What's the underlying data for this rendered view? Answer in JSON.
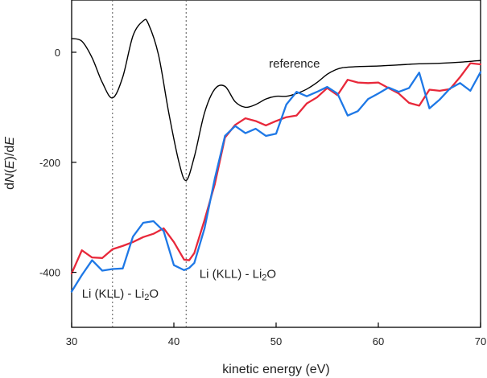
{
  "chart_data": {
    "type": "line",
    "title": "",
    "xlabel": "kinetic energy (eV)",
    "ylabel": "dN(E)/dE",
    "ylabel_parts": {
      "pre": "d",
      "n": "N",
      "paren_open": "(",
      "e1": "E",
      "paren_close": ")",
      "slash": "/d",
      "e2": "E"
    },
    "xlim": [
      30,
      70
    ],
    "ylim": [
      -500,
      95
    ],
    "xticks": [
      30,
      40,
      50,
      60,
      70
    ],
    "yticks": [
      0,
      -200,
      -400
    ],
    "grid": false,
    "legend": "none",
    "annotations": [
      {
        "name": "reference-label",
        "text": "reference",
        "x": 49.3,
        "y": -28
      },
      {
        "name": "li-kll-left-label",
        "prefix": "Li (KLL) - Li",
        "sub": "2",
        "suffix": "O",
        "x": 31.0,
        "y": -446
      },
      {
        "name": "li-kll-right-label",
        "prefix": "Li (KLL) - Li",
        "sub": "2",
        "suffix": "O",
        "x": 42.5,
        "y": -410
      }
    ],
    "vlines": [
      34,
      41.2
    ],
    "series": [
      {
        "key": "reference",
        "color": "#000000",
        "smooth": true,
        "points": [
          [
            30,
            25
          ],
          [
            31,
            20
          ],
          [
            32,
            -10
          ],
          [
            33,
            -55
          ],
          [
            34,
            -83
          ],
          [
            35,
            -45
          ],
          [
            36,
            30
          ],
          [
            37,
            57
          ],
          [
            37.5,
            52
          ],
          [
            38.5,
            -5
          ],
          [
            39.5,
            -110
          ],
          [
            40.5,
            -200
          ],
          [
            41.2,
            -233
          ],
          [
            42,
            -190
          ],
          [
            43,
            -110
          ],
          [
            44,
            -67
          ],
          [
            45,
            -62
          ],
          [
            46,
            -90
          ],
          [
            47,
            -100
          ],
          [
            48,
            -95
          ],
          [
            49,
            -85
          ],
          [
            50,
            -80
          ],
          [
            51,
            -80
          ],
          [
            52,
            -75
          ],
          [
            53,
            -67
          ],
          [
            54,
            -55
          ],
          [
            55,
            -40
          ],
          [
            55.8,
            -32
          ],
          [
            56.5,
            -28
          ],
          [
            58,
            -26
          ],
          [
            60,
            -25
          ],
          [
            62,
            -23
          ],
          [
            64,
            -21
          ],
          [
            66,
            -20
          ],
          [
            68,
            -18
          ],
          [
            70,
            -15
          ]
        ]
      },
      {
        "key": "red",
        "color": "#e8283a",
        "smooth": false,
        "points": [
          [
            30,
            -402
          ],
          [
            31,
            -360
          ],
          [
            32,
            -373
          ],
          [
            33,
            -374
          ],
          [
            34,
            -358
          ],
          [
            35,
            -352
          ],
          [
            36,
            -345
          ],
          [
            37,
            -336
          ],
          [
            38,
            -330
          ],
          [
            39,
            -320
          ],
          [
            40,
            -345
          ],
          [
            41,
            -377
          ],
          [
            41.5,
            -378
          ],
          [
            42,
            -365
          ],
          [
            43,
            -305
          ],
          [
            44,
            -240
          ],
          [
            45,
            -155
          ],
          [
            46,
            -132
          ],
          [
            47,
            -120
          ],
          [
            48,
            -125
          ],
          [
            49,
            -133
          ],
          [
            50,
            -125
          ],
          [
            51,
            -118
          ],
          [
            52,
            -115
          ],
          [
            53,
            -93
          ],
          [
            54,
            -82
          ],
          [
            55,
            -65
          ],
          [
            56,
            -78
          ],
          [
            57,
            -50
          ],
          [
            58,
            -55
          ],
          [
            59,
            -56
          ],
          [
            60,
            -55
          ],
          [
            61,
            -65
          ],
          [
            62,
            -75
          ],
          [
            63,
            -92
          ],
          [
            64,
            -97
          ],
          [
            65,
            -68
          ],
          [
            66,
            -70
          ],
          [
            67,
            -67
          ],
          [
            68,
            -45
          ],
          [
            69,
            -20
          ],
          [
            70,
            -22
          ]
        ]
      },
      {
        "key": "blue",
        "color": "#1e78e6",
        "smooth": false,
        "points": [
          [
            30,
            -435
          ],
          [
            31,
            -405
          ],
          [
            32,
            -378
          ],
          [
            33,
            -397
          ],
          [
            34,
            -394
          ],
          [
            35,
            -393
          ],
          [
            36,
            -335
          ],
          [
            37,
            -310
          ],
          [
            38,
            -307
          ],
          [
            39,
            -325
          ],
          [
            40,
            -387
          ],
          [
            41,
            -396
          ],
          [
            41.5,
            -392
          ],
          [
            42,
            -383
          ],
          [
            43,
            -320
          ],
          [
            44,
            -230
          ],
          [
            45,
            -152
          ],
          [
            46,
            -134
          ],
          [
            47,
            -147
          ],
          [
            48,
            -139
          ],
          [
            49,
            -152
          ],
          [
            50,
            -148
          ],
          [
            51,
            -95
          ],
          [
            52,
            -72
          ],
          [
            53,
            -80
          ],
          [
            54,
            -72
          ],
          [
            55,
            -63
          ],
          [
            56,
            -75
          ],
          [
            57,
            -115
          ],
          [
            58,
            -107
          ],
          [
            59,
            -85
          ],
          [
            60,
            -75
          ],
          [
            61,
            -64
          ],
          [
            62,
            -72
          ],
          [
            63,
            -65
          ],
          [
            64,
            -37
          ],
          [
            65,
            -102
          ],
          [
            66,
            -86
          ],
          [
            67,
            -66
          ],
          [
            68,
            -56
          ],
          [
            69,
            -70
          ],
          [
            70,
            -36
          ]
        ]
      }
    ]
  }
}
